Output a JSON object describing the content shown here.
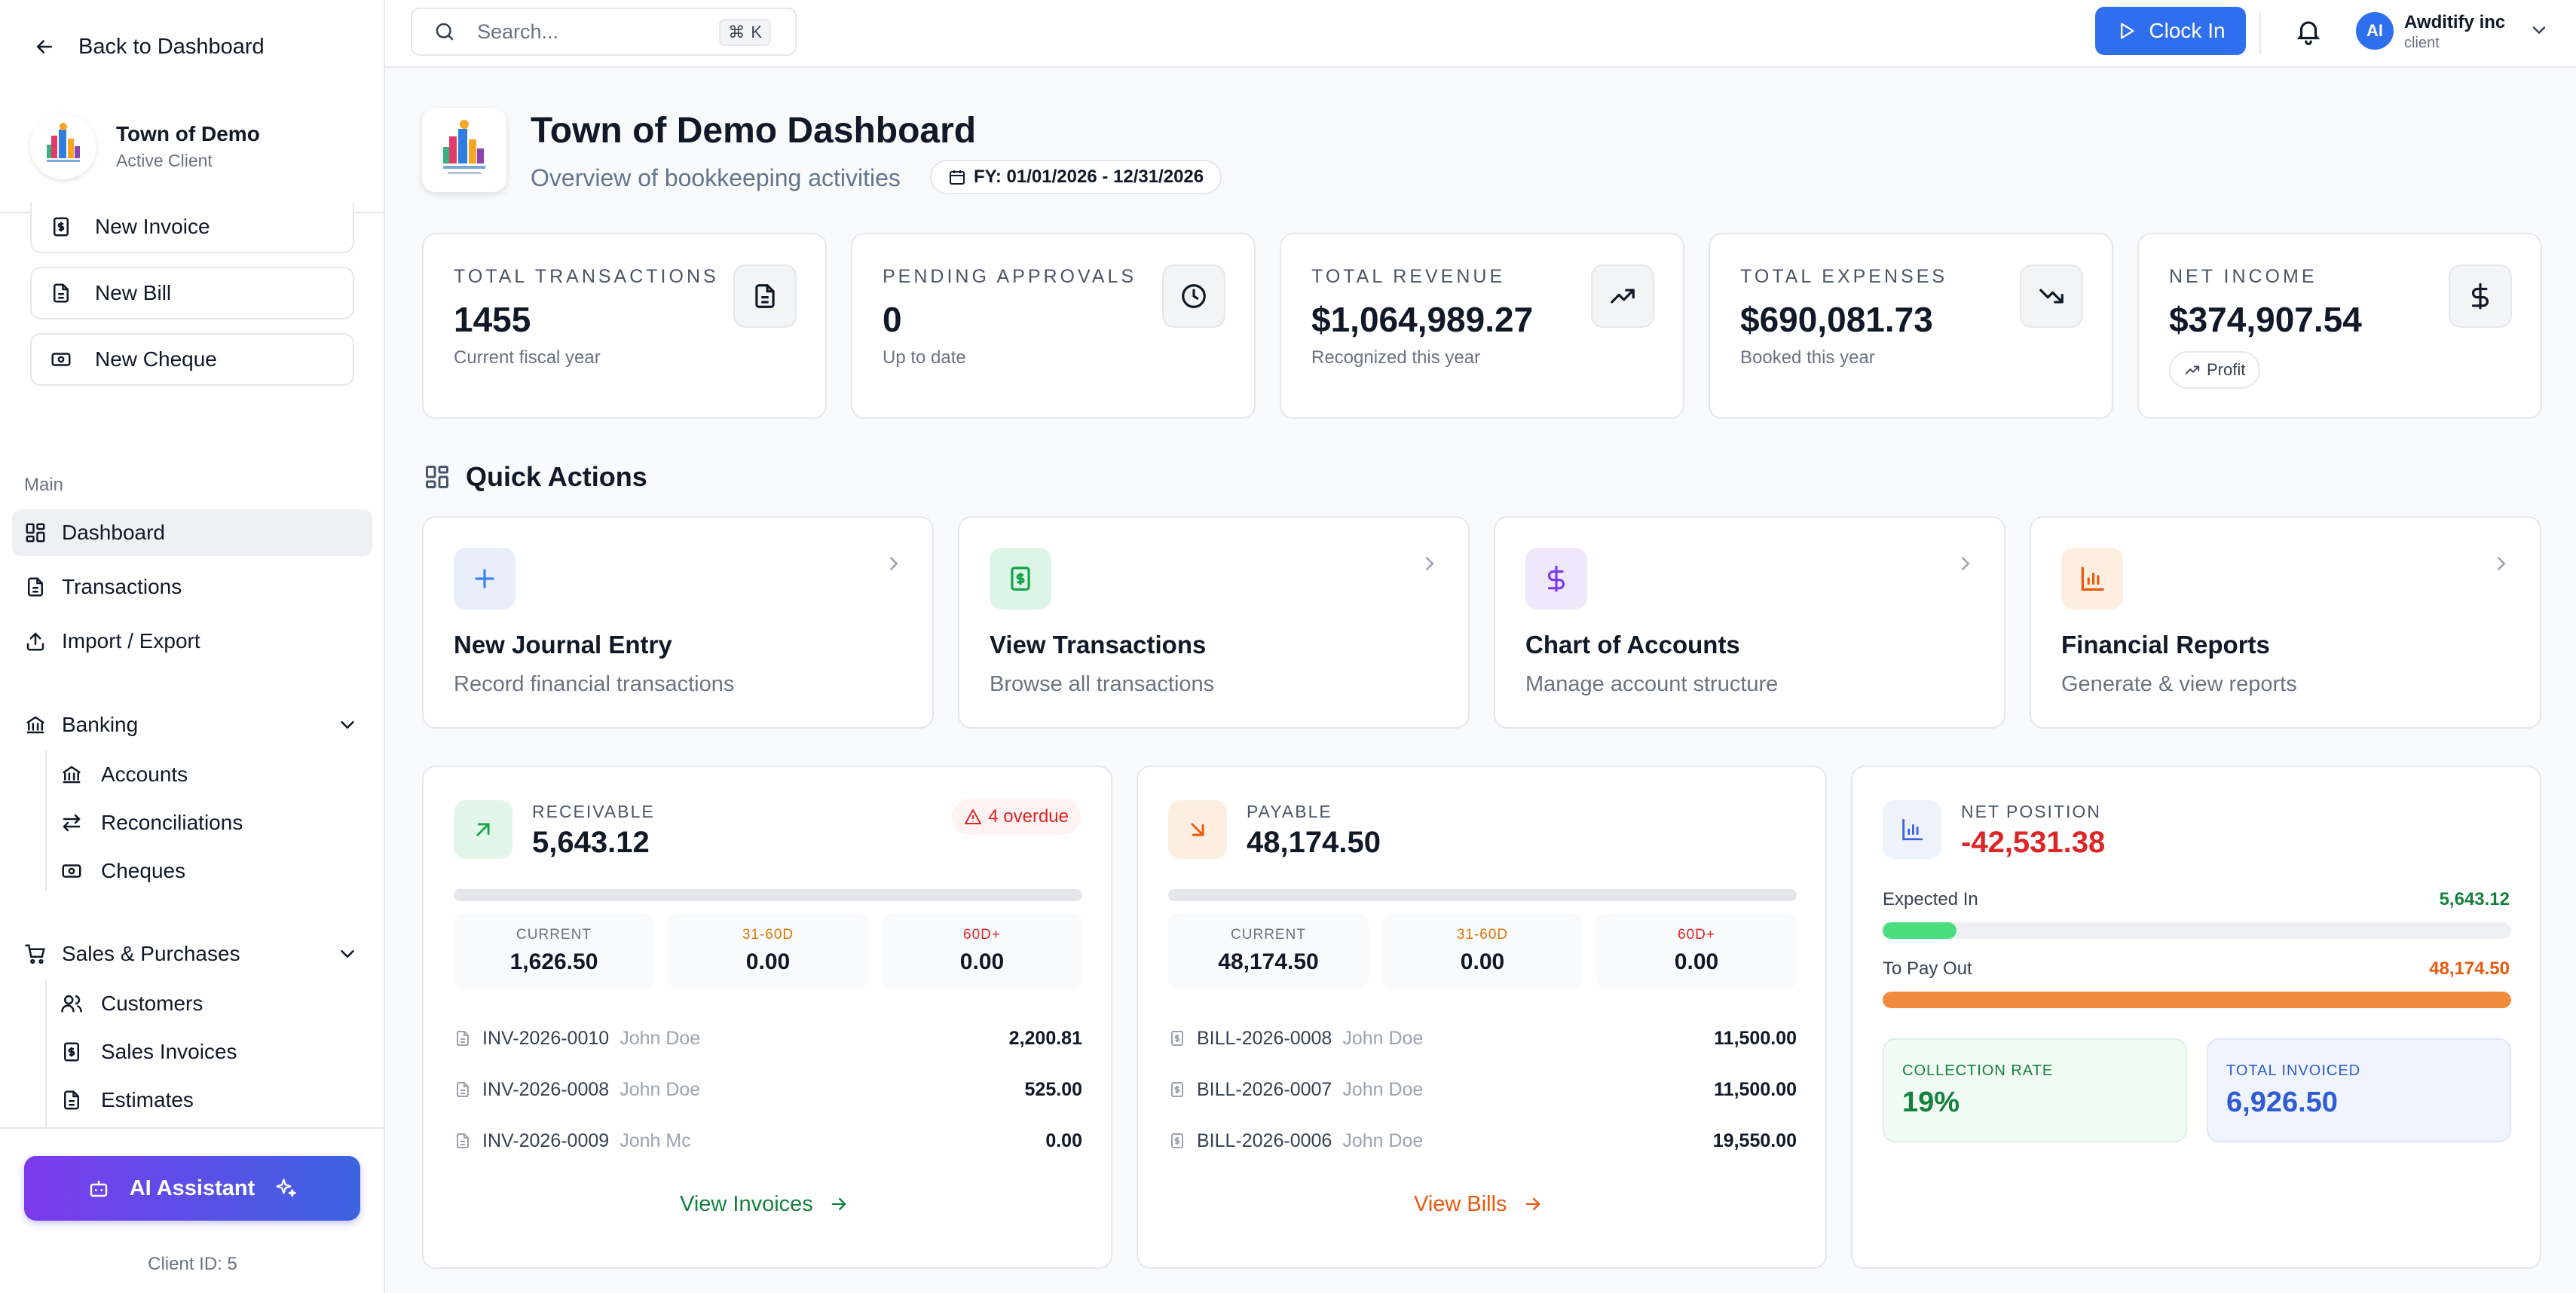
{
  "sidebar": {
    "back_label": "Back to Dashboard",
    "client_name": "Town of Demo",
    "client_status": "Active Client",
    "quick_buttons": [
      "New Invoice",
      "New Bill",
      "New Cheque"
    ],
    "section_main": "Main",
    "nav": {
      "dashboard": "Dashboard",
      "transactions": "Transactions",
      "import_export": "Import / Export",
      "banking": "Banking",
      "accounts": "Accounts",
      "reconciliations": "Reconciliations",
      "cheques": "Cheques",
      "sales_purchases": "Sales & Purchases",
      "customers": "Customers",
      "sales_invoices": "Sales Invoices",
      "estimates": "Estimates"
    },
    "ai_button": "AI Assistant",
    "client_id": "Client ID: 5"
  },
  "topbar": {
    "search_placeholder": "Search...",
    "shortcut_key": "K",
    "clock_in": "Clock In",
    "avatar_initials": "AI",
    "user_name": "Awditify inc",
    "user_role": "client"
  },
  "header": {
    "title": "Town of Demo Dashboard",
    "subtitle": "Overview of bookkeeping activities",
    "fiscal_year": "FY: 01/01/2026 - 12/31/2026"
  },
  "stats": [
    {
      "label": "TOTAL TRANSACTIONS",
      "value": "1455",
      "sub": "Current fiscal year",
      "icon": "document-icon"
    },
    {
      "label": "PENDING APPROVALS",
      "value": "0",
      "sub": "Up to date",
      "icon": "clock-icon"
    },
    {
      "label": "TOTAL REVENUE",
      "value": "$1,064,989.27",
      "sub": "Recognized this year",
      "icon": "trending-up-icon"
    },
    {
      "label": "TOTAL EXPENSES",
      "value": "$690,081.73",
      "sub": "Booked this year",
      "icon": "trending-down-icon"
    },
    {
      "label": "NET INCOME",
      "value": "$374,907.54",
      "badge": "Profit",
      "icon": "dollar-icon"
    }
  ],
  "quick_actions": {
    "heading": "Quick Actions",
    "items": [
      {
        "title": "New Journal Entry",
        "desc": "Record financial transactions",
        "icon": "plus-icon",
        "color": "#3b82f6"
      },
      {
        "title": "View Transactions",
        "desc": "Browse all transactions",
        "icon": "receipt-icon",
        "color": "#16a34a"
      },
      {
        "title": "Chart of Accounts",
        "desc": "Manage account structure",
        "icon": "dollar-icon",
        "color": "#7c3aed"
      },
      {
        "title": "Financial Reports",
        "desc": "Generate & view reports",
        "icon": "bar-chart-icon",
        "color": "#ea580c"
      }
    ]
  },
  "receivable": {
    "label": "RECEIVABLE",
    "value": "5,643.12",
    "overdue": "4 overdue",
    "aging": [
      {
        "label": "CURRENT",
        "value": "1,626.50"
      },
      {
        "label": "31-60D",
        "value": "0.00"
      },
      {
        "label": "60D+",
        "value": "0.00"
      }
    ],
    "rows": [
      {
        "id": "INV-2026-0010",
        "name": "John Doe",
        "amount": "2,200.81"
      },
      {
        "id": "INV-2026-0008",
        "name": "John Doe",
        "amount": "525.00"
      },
      {
        "id": "INV-2026-0009",
        "name": "Jonh Mc",
        "amount": "0.00"
      }
    ],
    "link": "View Invoices"
  },
  "payable": {
    "label": "PAYABLE",
    "value": "48,174.50",
    "aging": [
      {
        "label": "CURRENT",
        "value": "48,174.50"
      },
      {
        "label": "31-60D",
        "value": "0.00"
      },
      {
        "label": "60D+",
        "value": "0.00"
      }
    ],
    "rows": [
      {
        "id": "BILL-2026-0008",
        "name": "John Doe",
        "amount": "11,500.00"
      },
      {
        "id": "BILL-2026-0007",
        "name": "John Doe",
        "amount": "11,500.00"
      },
      {
        "id": "BILL-2026-0006",
        "name": "John Doe",
        "amount": "19,550.00"
      }
    ],
    "link": "View Bills"
  },
  "net_position": {
    "label": "NET POSITION",
    "value": "-42,531.38",
    "expected_label": "Expected In",
    "expected_value": "5,643.12",
    "expected_fraction": 0.117,
    "payout_label": "To Pay Out",
    "payout_value": "48,174.50",
    "payout_fraction": 1.0,
    "collection_label": "COLLECTION RATE",
    "collection_value": "19%",
    "invoiced_label": "TOTAL INVOICED",
    "invoiced_value": "6,926.50"
  }
}
